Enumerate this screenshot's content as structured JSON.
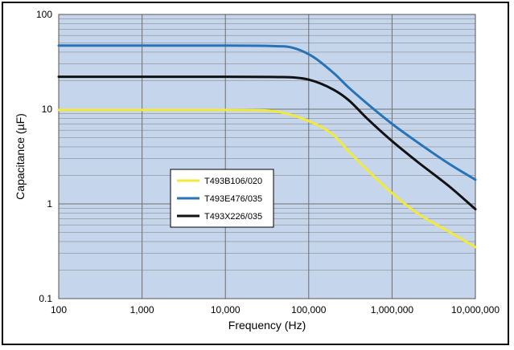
{
  "chart_data": {
    "type": "line",
    "title": "",
    "xlabel": "Frequency (Hz)",
    "ylabel": "Capacitance (µF)",
    "x_scale": "log",
    "y_scale": "log",
    "xlim": [
      100,
      10000000
    ],
    "ylim": [
      0.1,
      100
    ],
    "x_ticks": [
      {
        "value": 100,
        "label": "100"
      },
      {
        "value": 1000,
        "label": "1,000"
      },
      {
        "value": 10000,
        "label": "10,000"
      },
      {
        "value": 100000,
        "label": "100,000"
      },
      {
        "value": 1000000,
        "label": "1,000,000"
      },
      {
        "value": 10000000,
        "label": "10,000,000"
      }
    ],
    "y_ticks": [
      {
        "value": 0.1,
        "label": "0.1"
      },
      {
        "value": 1,
        "label": "1"
      },
      {
        "value": 10,
        "label": "10"
      },
      {
        "value": 100,
        "label": "100"
      }
    ],
    "grid": true,
    "legend_position": "left-center",
    "colors": {
      "plot_background": "#c5d5ec",
      "grid": "#8c8c8c"
    },
    "series": [
      {
        "name": "T493B106/020",
        "color": "#f2ea3a",
        "x": [
          100,
          1000,
          10000,
          30000,
          100000,
          200000,
          300000,
          500000,
          1000000,
          2000000,
          5000000,
          10000000
        ],
        "y": [
          9.8,
          9.8,
          9.8,
          9.7,
          7.5,
          5.3,
          3.6,
          2.3,
          1.3,
          0.8,
          0.5,
          0.35
        ]
      },
      {
        "name": "T493E476/035",
        "color": "#2673b8",
        "x": [
          100,
          1000,
          10000,
          50000,
          100000,
          200000,
          300000,
          500000,
          1000000,
          2000000,
          5000000,
          10000000
        ],
        "y": [
          47,
          47,
          47,
          46,
          38,
          24,
          17,
          11.5,
          7,
          4.5,
          2.6,
          1.8
        ]
      },
      {
        "name": "T493X226/035",
        "color": "#111111",
        "x": [
          100,
          1000,
          10000,
          50000,
          100000,
          200000,
          300000,
          500000,
          1000000,
          2000000,
          5000000,
          10000000
        ],
        "y": [
          22,
          22,
          22,
          21.8,
          20.5,
          16,
          12.5,
          8,
          4.6,
          2.8,
          1.5,
          0.88
        ]
      }
    ]
  }
}
